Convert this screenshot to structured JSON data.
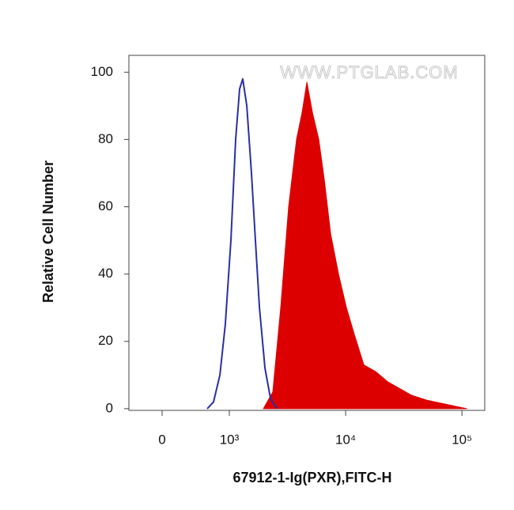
{
  "chart_data": {
    "type": "histogram-overlay",
    "watermark": "WWW.PTGLAB.COM",
    "x_label": "67912-1-Ig(PXR),FITC-H",
    "y_label": "Relative Cell Number",
    "xscale": "biexponential",
    "xlim": [
      -494,
      157000
    ],
    "ylim": [
      -0.5,
      105
    ],
    "xticks": [
      0,
      {
        "value": 1000,
        "label": "10³"
      },
      {
        "value": 10000,
        "label": "10⁴"
      },
      {
        "value": 100000,
        "label": "10⁵"
      }
    ],
    "yticks": [
      0,
      20,
      40,
      60,
      80,
      100
    ],
    "series": [
      {
        "color": "#2b2fa0",
        "fill": false,
        "x": [
          670,
          765,
          860,
          940,
          1032,
          1133,
          1225,
          1305,
          1412,
          1550,
          1675,
          1815,
          2025,
          2260,
          2560
        ],
        "values": [
          0,
          2,
          10,
          25,
          50,
          80,
          95,
          98,
          90,
          70,
          50,
          30,
          12,
          3,
          0
        ]
      },
      {
        "color": "#dd0000",
        "fill": true,
        "x": [
          1963,
          2365,
          2766,
          3236,
          3784,
          4224,
          4641,
          5180,
          5870,
          6550,
          7430,
          8690,
          10160,
          11880,
          14330,
          18150,
          22950,
          29030,
          36720,
          50230,
          68710,
          94000,
          109900
        ],
        "values": [
          0,
          5,
          30,
          60,
          80,
          88,
          97,
          88,
          80,
          68,
          52,
          40,
          30,
          22,
          13,
          11,
          8,
          6,
          4,
          2.5,
          1.5,
          0.5,
          0
        ]
      }
    ]
  }
}
